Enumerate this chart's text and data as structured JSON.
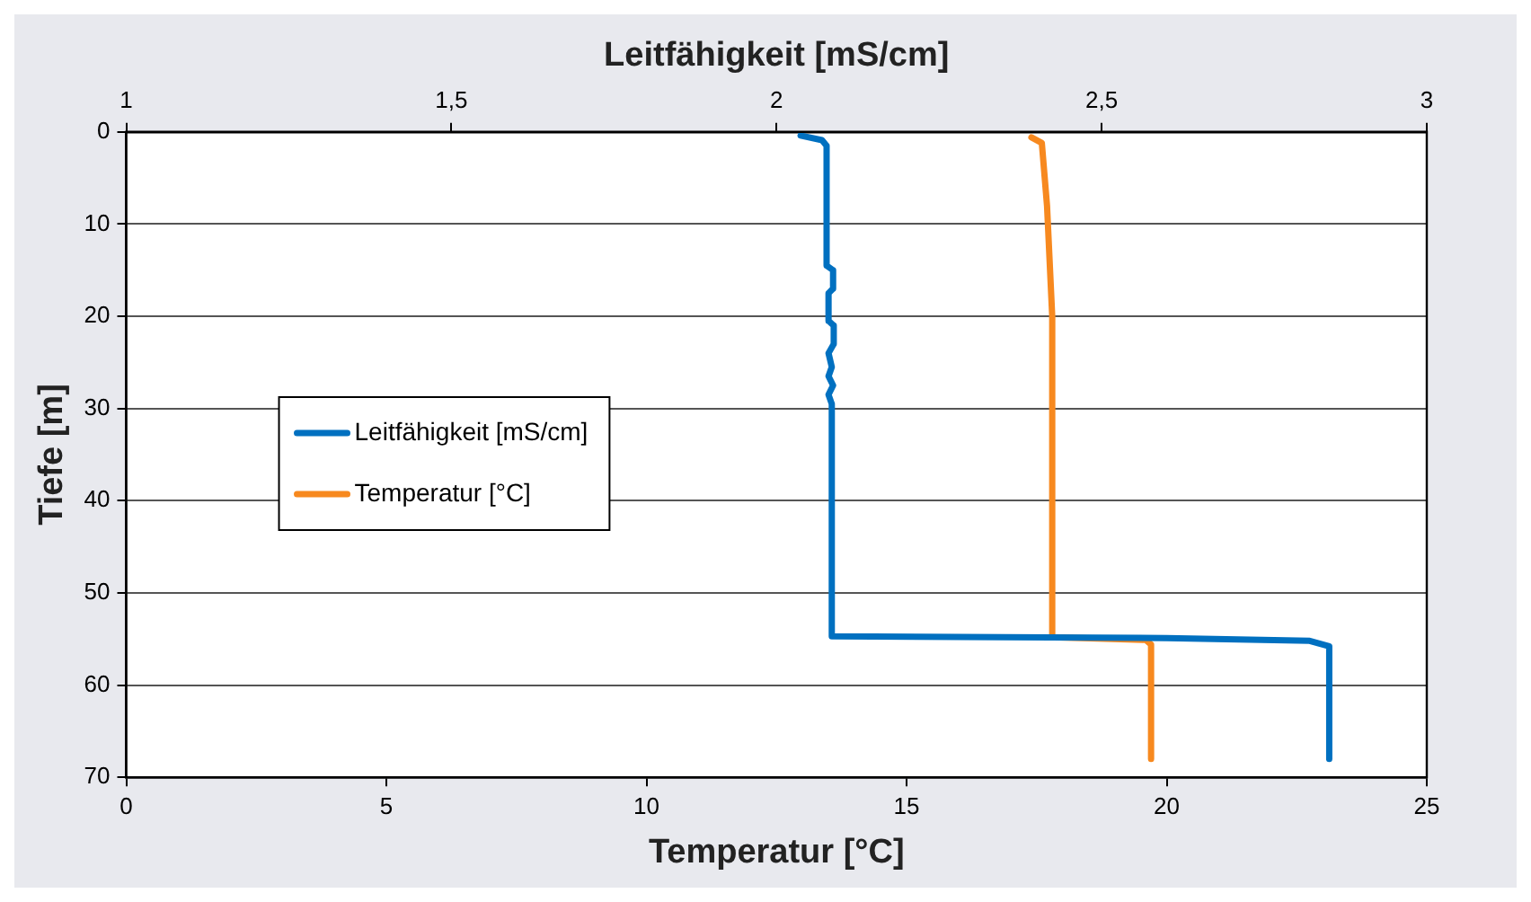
{
  "chart_data": {
    "type": "line",
    "xlabel": "Temperatur [°C]",
    "x2label": "Leitfähigkeit [mS/cm]",
    "ylabel": "Tiefe [m]",
    "xlim": [
      0,
      25
    ],
    "xticks": [
      0,
      5,
      10,
      15,
      20,
      25
    ],
    "x2lim": [
      1,
      3
    ],
    "x2ticks": [
      1,
      {
        "value": 1.5,
        "label": "1,5"
      },
      2,
      {
        "value": 2.5,
        "label": "2,5"
      },
      3
    ],
    "ylim": [
      70,
      0
    ],
    "yticks": [
      0,
      10,
      20,
      30,
      40,
      50,
      60,
      70
    ],
    "grid": "y",
    "legend": "left",
    "marker": "none",
    "line_style": "solid",
    "series": [
      {
        "name": "Leitfähigkeit [mS/cm]",
        "color": "#0070c0",
        "axis": "x2",
        "x": [
          2.037,
          2.07,
          2.077,
          2.077,
          2.087,
          2.087,
          2.08,
          2.08,
          2.088,
          2.088,
          2.08,
          2.085,
          2.08,
          2.087,
          2.08,
          2.085,
          2.085,
          2.6,
          2.82,
          2.85,
          2.85
        ],
        "values": [
          0.4,
          0.9,
          1.5,
          14.5,
          15,
          17,
          17.5,
          20.5,
          21,
          23,
          24,
          25.5,
          26.5,
          27.5,
          28.5,
          29.5,
          54.7,
          54.9,
          55.2,
          55.8,
          68
        ]
      },
      {
        "name": "Temperatur [°C]",
        "color": "#f7891f",
        "x": [
          17.4,
          17.6,
          17.7,
          17.8,
          17.8,
          19.6,
          19.7,
          19.7
        ],
        "values": [
          0.6,
          1.2,
          8,
          20,
          54.8,
          55.1,
          55.6,
          68
        ]
      }
    ]
  }
}
